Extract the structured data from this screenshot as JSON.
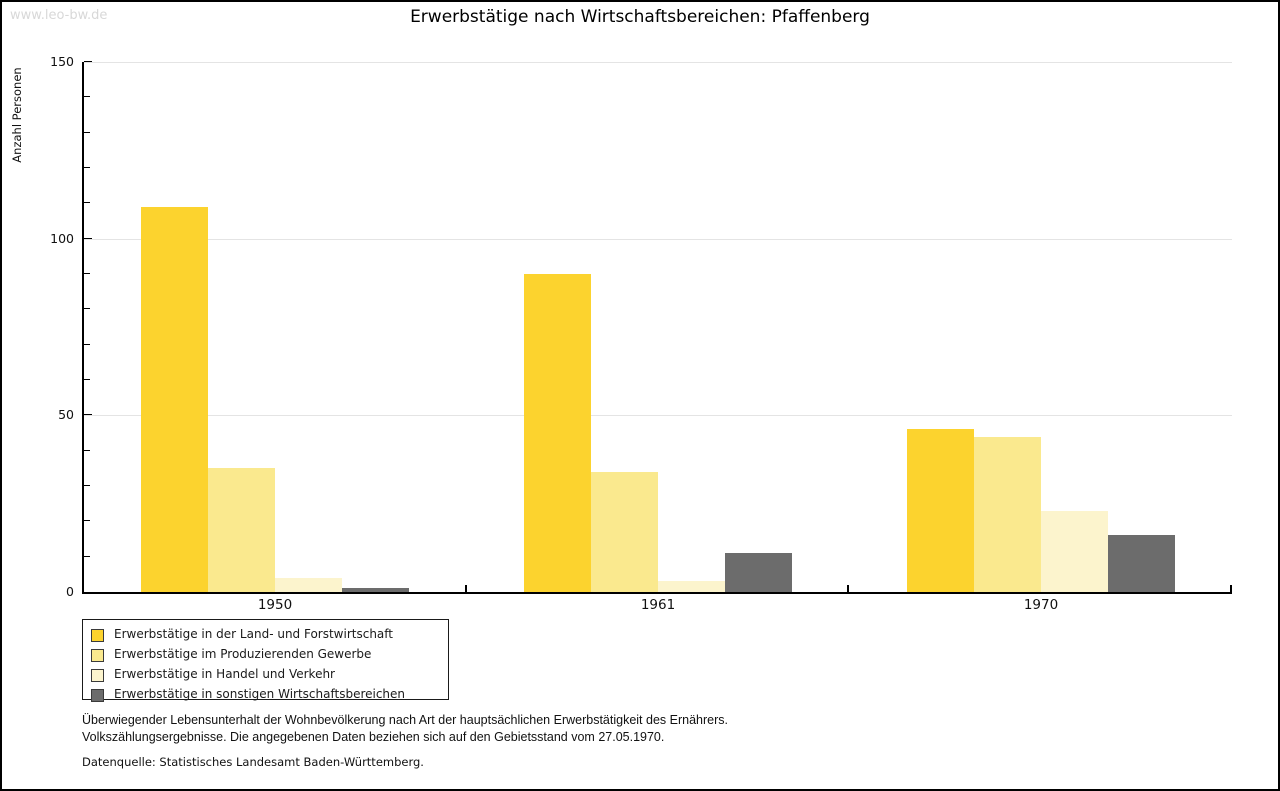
{
  "watermark": "www.leo-bw.de",
  "chart_data": {
    "type": "bar",
    "title": "Erwerbstätige nach Wirtschaftsbereichen: Pfaffenberg",
    "xlabel": "",
    "ylabel": "Anzahl Personen",
    "ylim": [
      0,
      150
    ],
    "ytick_step_major": 50,
    "ytick_step_minor": 10,
    "ytick_labels": [
      "0",
      "50",
      "100",
      "150"
    ],
    "grid": "horizontal",
    "legend_position": "bottom-left-boxed",
    "categories": [
      "1950",
      "1961",
      "1970"
    ],
    "series": [
      {
        "name": "Erwerbstätige in der Land- und Forstwirtschaft",
        "color": "#fcd32e",
        "values": [
          109,
          90,
          46
        ]
      },
      {
        "name": "Erwerbstätige im Produzierenden Gewerbe",
        "color": "#fae98e",
        "values": [
          35,
          34,
          44
        ]
      },
      {
        "name": "Erwerbstätige in Handel und Verkehr",
        "color": "#fcf4cd",
        "values": [
          4,
          3,
          23
        ]
      },
      {
        "name": "Erwerbstätige in sonstigen Wirtschaftsbereichen",
        "color": "#6c6c6c",
        "values": [
          1,
          11,
          16
        ]
      }
    ]
  },
  "footnotes": {
    "line1": "Überwiegender Lebensunterhalt der Wohnbevölkerung nach Art der hauptsächlichen Erwerbstätigkeit des Ernährers.",
    "line2": "Volkszählungsergebnisse. Die angegebenen Daten beziehen sich auf den Gebietsstand vom 27.05.1970.",
    "source": "Datenquelle: Statistisches Landesamt Baden-Württemberg."
  }
}
